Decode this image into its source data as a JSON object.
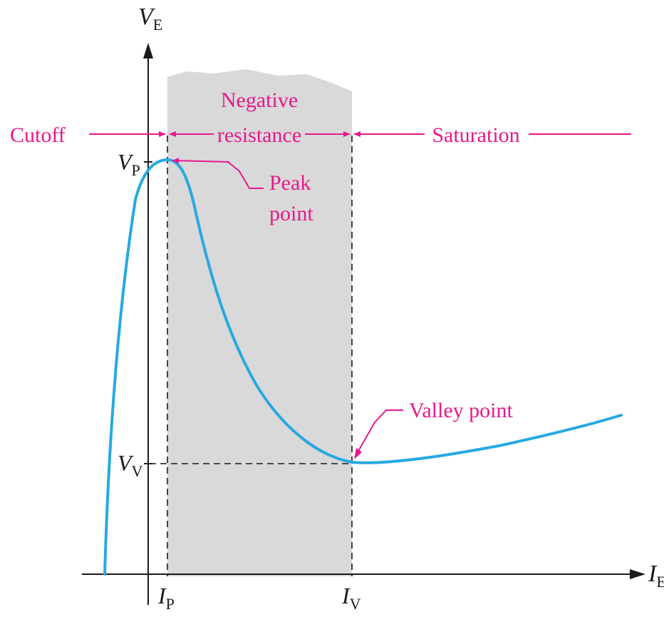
{
  "colors": {
    "curve": "#27a9e1",
    "annotation": "#e6198c",
    "shade": "#d9d9d9",
    "axis": "#1a1a1a"
  },
  "axes": {
    "y_label_main": "V",
    "y_label_sub": "E",
    "x_label_main": "I",
    "x_label_sub": "E"
  },
  "ticks": {
    "vp_main": "V",
    "vp_sub": "P",
    "vv_main": "V",
    "vv_sub": "V",
    "ip_main": "I",
    "ip_sub": "P",
    "iv_main": "I",
    "iv_sub": "V"
  },
  "regions": {
    "cutoff": "Cutoff",
    "negative_line1": "Negative",
    "negative_line2": "resistance",
    "saturation": "Saturation"
  },
  "annotations": {
    "peak_line1": "Peak",
    "peak_line2": "point",
    "valley": "Valley point"
  }
}
